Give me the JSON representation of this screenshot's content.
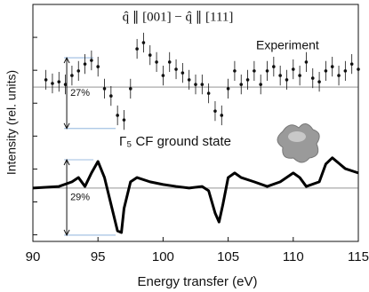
{
  "chart_data": {
    "type": "line",
    "title": "q̂ ∥ [001] − q̂ ∥ [111]",
    "x_label": "Energy transfer (eV)",
    "y_label": "Intensity (rel. units)",
    "xlim": [
      90,
      115
    ],
    "xticks": [
      90,
      95,
      100,
      105,
      110,
      115
    ],
    "ylim": [
      0,
      7.2
    ],
    "yticks": [
      0.2,
      1.2,
      2.2,
      3.2,
      4.2,
      5.2,
      6.2
    ],
    "reference_lines": [
      4.69,
      1.62
    ],
    "annotations": [
      {
        "text": "27%",
        "x": 92.6,
        "y": [
          5.58,
          3.43
        ]
      },
      {
        "text": "29%",
        "x": 92.6,
        "y": [
          2.48,
          0.19
        ]
      }
    ],
    "series": [
      {
        "name": "Experiment",
        "style": "errorbar",
        "color": "#111111",
        "x": [
          91,
          91.5,
          92,
          92.5,
          93,
          93.5,
          94,
          94.5,
          95,
          95.5,
          96,
          96.5,
          97,
          97.5,
          98,
          98.5,
          99,
          99.5,
          100,
          100.5,
          101,
          101.5,
          102,
          102.5,
          103,
          103.5,
          104,
          104.5,
          105,
          105.5,
          106,
          106.5,
          107,
          107.5,
          108,
          108.5,
          109,
          109.5,
          110,
          110.5,
          111,
          111.5,
          112,
          112.5,
          113,
          113.5,
          114,
          114.5,
          115
        ],
        "values": [
          4.91,
          4.8,
          4.85,
          4.77,
          5.04,
          5.18,
          5.39,
          5.5,
          5.31,
          4.64,
          4.42,
          3.83,
          3.69,
          4.64,
          5.85,
          6.04,
          5.66,
          5.45,
          5.04,
          5.45,
          5.23,
          5.12,
          4.91,
          4.77,
          4.77,
          4.5,
          3.96,
          3.83,
          4.64,
          5.18,
          4.77,
          4.91,
          5.18,
          4.77,
          5.18,
          5.31,
          5.04,
          4.91,
          5.23,
          5.04,
          5.45,
          4.96,
          4.85,
          5.18,
          5.31,
          5.04,
          5.18,
          5.39,
          5.23
        ],
        "errors": [
          0.3,
          0.3,
          0.3,
          0.3,
          0.3,
          0.3,
          0.3,
          0.3,
          0.3,
          0.3,
          0.3,
          0.3,
          0.3,
          0.3,
          0.3,
          0.3,
          0.3,
          0.3,
          0.3,
          0.3,
          0.3,
          0.3,
          0.3,
          0.3,
          0.3,
          0.3,
          0.3,
          0.3,
          0.3,
          0.3,
          0.3,
          0.3,
          0.3,
          0.3,
          0.3,
          0.3,
          0.3,
          0.3,
          0.3,
          0.3,
          0.3,
          0.3,
          0.3,
          0.3,
          0.3,
          0.3,
          0.3,
          0.3,
          0.3
        ]
      },
      {
        "name": "Γ₅ CF ground state",
        "style": "line",
        "color": "#000000",
        "x": [
          90,
          92,
          93,
          93.5,
          94,
          94.5,
          95,
          95.5,
          96,
          96.5,
          96.8,
          97,
          97.5,
          98,
          99,
          100,
          101,
          102,
          103,
          103.5,
          104,
          104.3,
          104.6,
          105,
          105.5,
          106,
          107,
          108,
          109,
          110,
          110.5,
          111,
          112,
          112.5,
          113,
          114,
          115
        ],
        "values": [
          1.62,
          1.67,
          1.81,
          1.94,
          1.67,
          2.08,
          2.43,
          1.94,
          1.13,
          0.32,
          0.27,
          1.0,
          1.81,
          1.94,
          1.81,
          1.73,
          1.67,
          1.62,
          1.67,
          1.54,
          0.86,
          0.59,
          1.13,
          1.94,
          2.08,
          1.94,
          1.81,
          1.67,
          1.81,
          2.08,
          1.94,
          1.67,
          1.81,
          2.35,
          2.54,
          2.21,
          2.08
        ]
      }
    ]
  }
}
